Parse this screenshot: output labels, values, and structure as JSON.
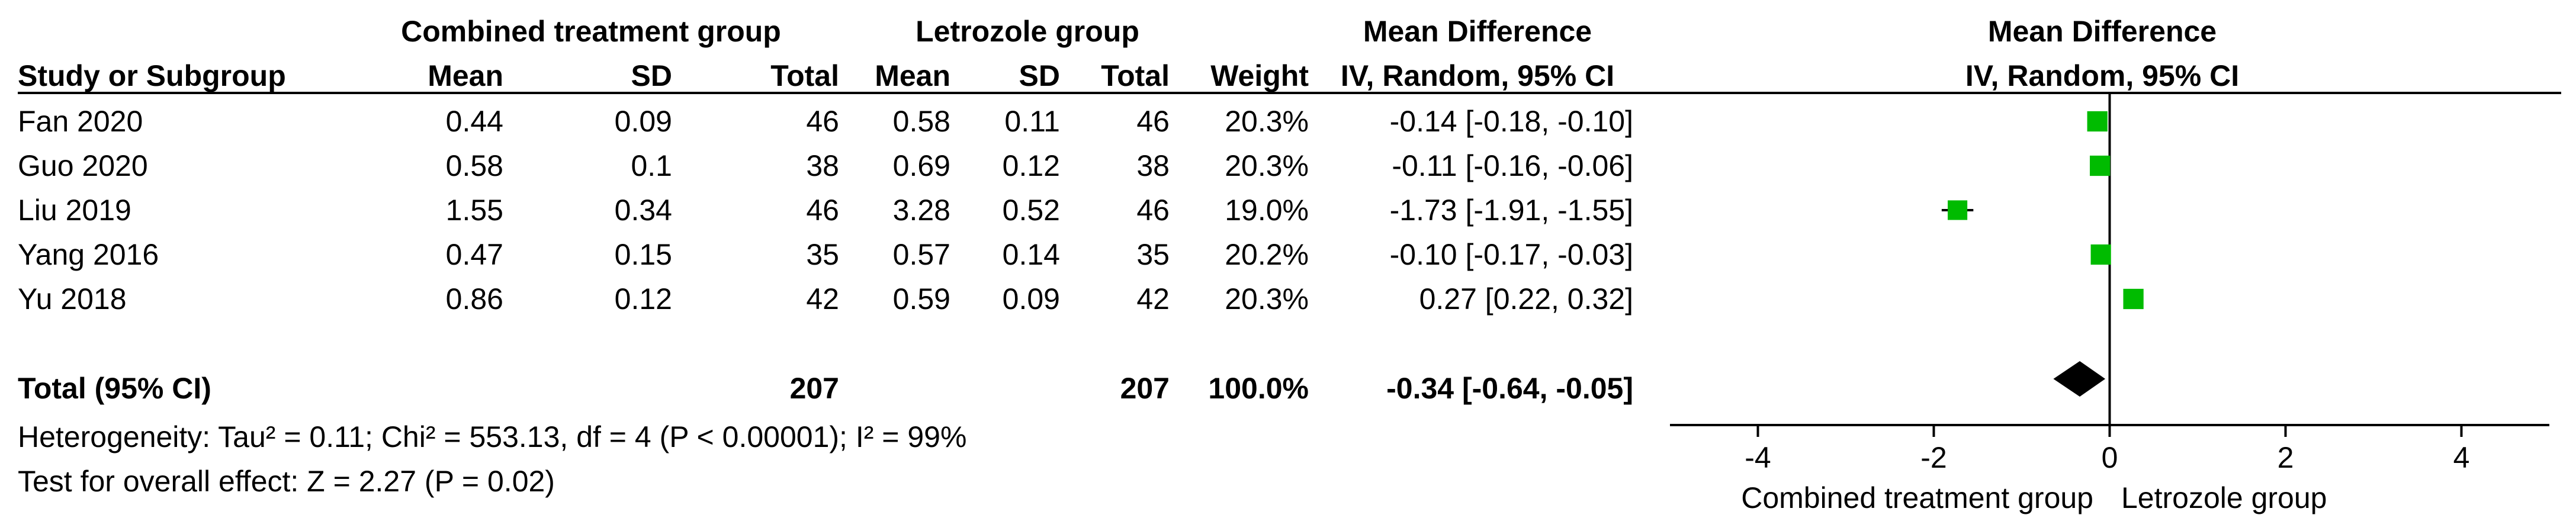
{
  "header": {
    "group1": "Combined treatment group",
    "group2": "Letrozole group",
    "md_table": "Mean Difference",
    "md_plot": "Mean Difference",
    "col_study": "Study or Subgroup",
    "col_mean1": "Mean",
    "col_sd1": "SD",
    "col_total1": "Total",
    "col_mean2": "Mean",
    "col_sd2": "SD",
    "col_total2": "Total",
    "col_weight": "Weight",
    "method_table": "IV, Random, 95% CI",
    "method_plot": "IV, Random, 95% CI"
  },
  "studies": [
    {
      "name": "Fan 2020",
      "mean1": "0.44",
      "sd1": "0.09",
      "total1": "46",
      "mean2": "0.58",
      "sd2": "0.11",
      "total2": "46",
      "weight": "20.3%",
      "ci_text": "-0.14 [-0.18, -0.10]"
    },
    {
      "name": "Guo 2020",
      "mean1": "0.58",
      "sd1": "0.1",
      "total1": "38",
      "mean2": "0.69",
      "sd2": "0.12",
      "total2": "38",
      "weight": "20.3%",
      "ci_text": "-0.11 [-0.16, -0.06]"
    },
    {
      "name": "Liu 2019",
      "mean1": "1.55",
      "sd1": "0.34",
      "total1": "46",
      "mean2": "3.28",
      "sd2": "0.52",
      "total2": "46",
      "weight": "19.0%",
      "ci_text": "-1.73 [-1.91, -1.55]"
    },
    {
      "name": "Yang 2016",
      "mean1": "0.47",
      "sd1": "0.15",
      "total1": "35",
      "mean2": "0.57",
      "sd2": "0.14",
      "total2": "35",
      "weight": "20.2%",
      "ci_text": "-0.10 [-0.17, -0.03]"
    },
    {
      "name": "Yu 2018",
      "mean1": "0.86",
      "sd1": "0.12",
      "total1": "42",
      "mean2": "0.59",
      "sd2": "0.09",
      "total2": "42",
      "weight": "20.3%",
      "ci_text": "0.27 [0.22, 0.32]"
    }
  ],
  "total": {
    "label": "Total (95% CI)",
    "total1": "207",
    "total2": "207",
    "weight": "100.0%",
    "ci_text": "-0.34 [-0.64, -0.05]"
  },
  "heterogeneity": "Heterogeneity: Tau² = 0.11; Chi² = 553.13, df = 4 (P < 0.00001); I² = 99%",
  "overall_effect": "Test for overall effect: Z = 2.27 (P = 0.02)",
  "favours_left": "Combined treatment group",
  "favours_right": "Letrozole group",
  "colors": {
    "marker": "#00bb00",
    "diamond": "#000000",
    "line": "#000000"
  },
  "chart_data": {
    "type": "forest",
    "xlim": [
      -5,
      5
    ],
    "ticks": [
      -4,
      -2,
      0,
      2,
      4
    ],
    "tick_labels": [
      "-4",
      "-2",
      "0",
      "2",
      "4"
    ],
    "grid": false,
    "studies": [
      {
        "name": "Fan 2020",
        "md": -0.14,
        "lo": -0.18,
        "hi": -0.1,
        "weight": 20.3
      },
      {
        "name": "Guo 2020",
        "md": -0.11,
        "lo": -0.16,
        "hi": -0.06,
        "weight": 20.3
      },
      {
        "name": "Liu 2019",
        "md": -1.73,
        "lo": -1.91,
        "hi": -1.55,
        "weight": 19.0
      },
      {
        "name": "Yang 2016",
        "md": -0.1,
        "lo": -0.17,
        "hi": -0.03,
        "weight": 20.2
      },
      {
        "name": "Yu 2018",
        "md": 0.27,
        "lo": 0.22,
        "hi": 0.32,
        "weight": 20.3
      }
    ],
    "pooled": {
      "md": -0.34,
      "lo": -0.64,
      "hi": -0.05
    }
  }
}
